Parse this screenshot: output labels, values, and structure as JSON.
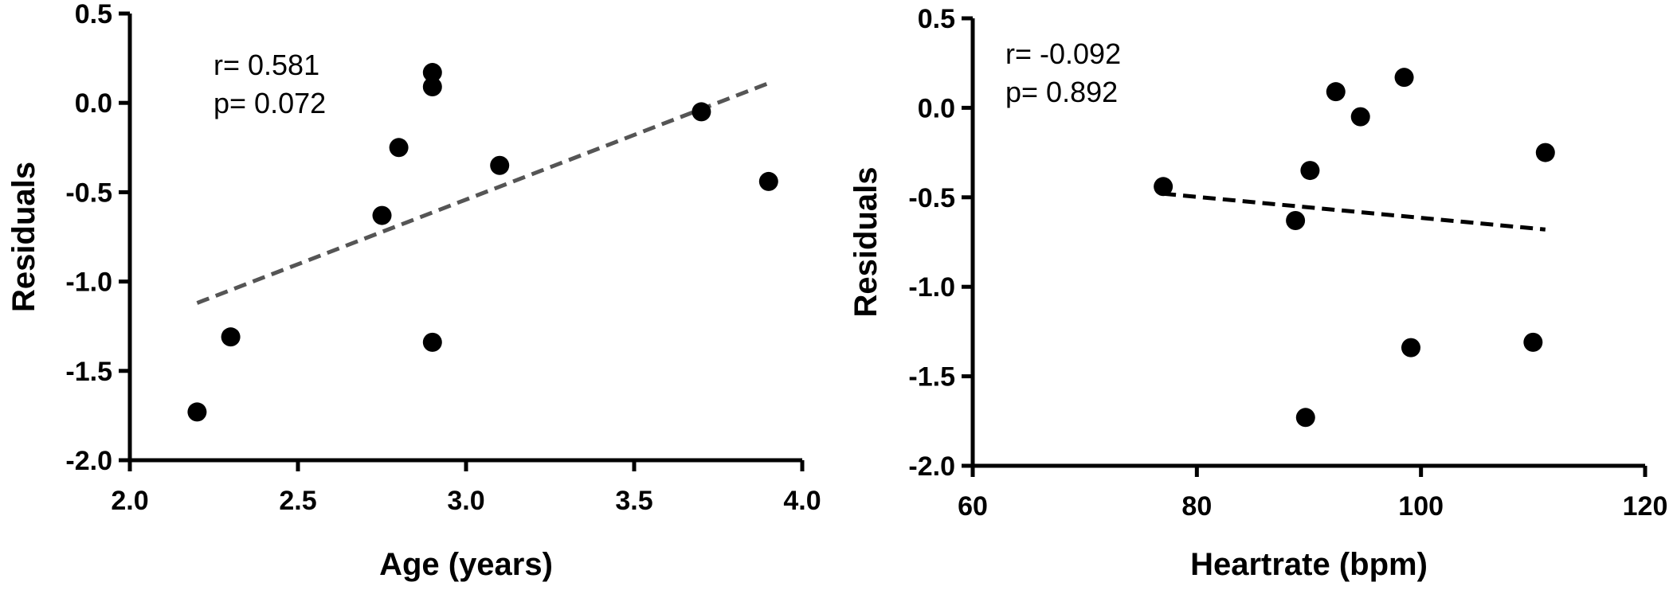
{
  "chart_data": [
    {
      "type": "scatter",
      "xlabel": "Age (years)",
      "ylabel": "Residuals",
      "xlim": [
        2.0,
        4.0
      ],
      "ylim": [
        -2.0,
        0.5
      ],
      "xticks": [
        "2.0",
        "2.5",
        "3.0",
        "3.5",
        "4.0"
      ],
      "yticks": [
        "0.5",
        "0.0",
        "-0.5",
        "-1.0",
        "-1.5",
        "-2.0"
      ],
      "points": [
        {
          "x": 2.2,
          "y": -1.73
        },
        {
          "x": 2.3,
          "y": -1.31
        },
        {
          "x": 2.75,
          "y": -0.63
        },
        {
          "x": 2.8,
          "y": -0.25
        },
        {
          "x": 2.9,
          "y": 0.17
        },
        {
          "x": 2.9,
          "y": 0.09
        },
        {
          "x": 2.9,
          "y": -1.34
        },
        {
          "x": 3.1,
          "y": -0.35
        },
        {
          "x": 3.7,
          "y": -0.05
        },
        {
          "x": 3.9,
          "y": -0.44
        }
      ],
      "fit_line": {
        "x": [
          2.2,
          3.9
        ],
        "y": [
          -1.12,
          0.11
        ],
        "color": "#555555"
      },
      "annotation": [
        "r= 0.581",
        "p= 0.072"
      ],
      "grid": false
    },
    {
      "type": "scatter",
      "xlabel": "Heartrate (bpm)",
      "ylabel": "Residuals",
      "xlim": [
        60,
        120
      ],
      "ylim": [
        -2.0,
        0.5
      ],
      "xticks": [
        "60",
        "80",
        "100",
        "120"
      ],
      "yticks": [
        "0.5",
        "0.0",
        "-0.5",
        "-1.0",
        "-1.5",
        "-2.0"
      ],
      "points": [
        {
          "x": 77,
          "y": -0.44
        },
        {
          "x": 88.8,
          "y": -0.63
        },
        {
          "x": 89.7,
          "y": -1.73
        },
        {
          "x": 90.1,
          "y": -0.35
        },
        {
          "x": 92.4,
          "y": 0.09
        },
        {
          "x": 94.6,
          "y": -0.05
        },
        {
          "x": 98.5,
          "y": 0.17
        },
        {
          "x": 99.1,
          "y": -1.34
        },
        {
          "x": 110,
          "y": -1.31
        },
        {
          "x": 111.1,
          "y": -0.25
        }
      ],
      "fit_line": {
        "x": [
          77,
          111.1
        ],
        "y": [
          -0.48,
          -0.68
        ],
        "color": "#000000"
      },
      "annotation": [
        "r= -0.092",
        "p= 0.892"
      ],
      "grid": false
    }
  ]
}
